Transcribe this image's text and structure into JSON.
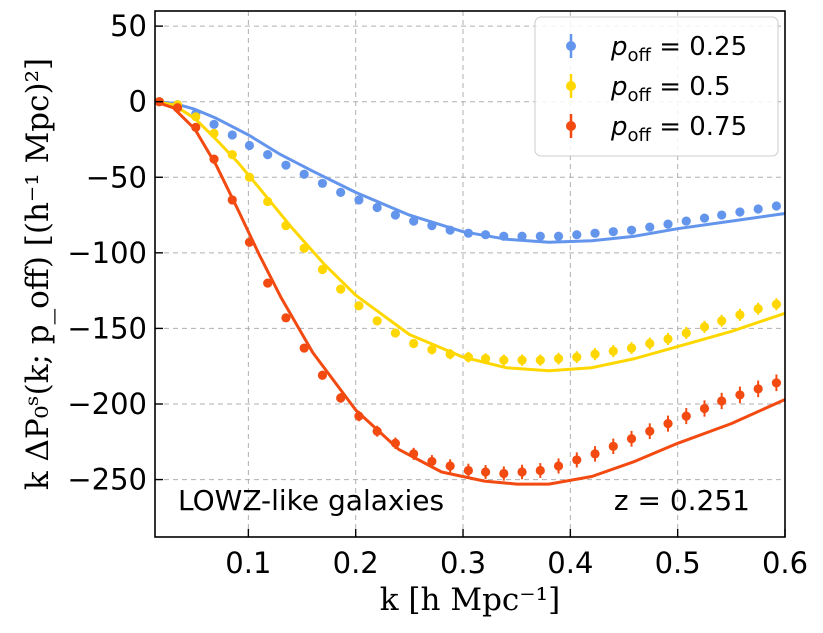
{
  "chart_data": {
    "type": "line",
    "title": "",
    "xlabel": "k [h Mpc⁻¹]",
    "ylabel": "k ΔP₀ˢ(k; p_off) [(h⁻¹ Mpc)²]",
    "xlim": [
      0.013,
      0.6
    ],
    "ylim": [
      -288,
      60
    ],
    "xticks": [
      0.1,
      0.2,
      0.3,
      0.4,
      0.5,
      0.6
    ],
    "xtick_labels": [
      "0.1",
      "0.2",
      "0.3",
      "0.4",
      "0.5",
      "0.6"
    ],
    "yticks": [
      50,
      0,
      -50,
      -100,
      -150,
      -200,
      -250
    ],
    "ytick_labels": [
      "50",
      "0",
      "−50",
      "−100",
      "−150",
      "−200",
      "−250"
    ],
    "grid": true,
    "legend_position": "top-right",
    "annotations": {
      "sample": "LOWZ-like galaxies",
      "redshift": "z = 0.251"
    },
    "series": [
      {
        "name": "p_off = 0.25",
        "legend_label": "p",
        "legend_sub": "off",
        "legend_value": " = 0.25",
        "color": "#6495ED",
        "points_x": [
          0.017,
          0.034,
          0.051,
          0.068,
          0.085,
          0.101,
          0.118,
          0.135,
          0.152,
          0.169,
          0.186,
          0.203,
          0.22,
          0.237,
          0.254,
          0.271,
          0.288,
          0.305,
          0.321,
          0.338,
          0.355,
          0.372,
          0.389,
          0.406,
          0.423,
          0.44,
          0.457,
          0.474,
          0.491,
          0.508,
          0.525,
          0.541,
          0.558,
          0.575,
          0.592
        ],
        "points_y": [
          0,
          -2,
          -8,
          -15,
          -22,
          -29,
          -35,
          -42,
          -48,
          -54,
          -60,
          -65,
          -70,
          -75,
          -79,
          -82,
          -85,
          -87,
          -88,
          -89,
          -89,
          -89,
          -89,
          -88,
          -87,
          -86,
          -85,
          -83,
          -81,
          -79,
          -77,
          -75,
          -73,
          -71,
          -69
        ],
        "errors": [
          0.5,
          0.5,
          0.6,
          0.7,
          0.8,
          0.9,
          1,
          1,
          1.1,
          1.2,
          1.2,
          1.3,
          1.4,
          1.5,
          1.5,
          1.6,
          1.7,
          1.8,
          1.8,
          1.9,
          2,
          2,
          2.1,
          2.2,
          2.2,
          2.3,
          2.4,
          2.4,
          2.5,
          2.6,
          2.6,
          2.7,
          2.8,
          2.8,
          2.9
        ],
        "model_x": [
          0.013,
          0.03,
          0.05,
          0.07,
          0.1,
          0.13,
          0.16,
          0.2,
          0.25,
          0.3,
          0.34,
          0.38,
          0.42,
          0.46,
          0.5,
          0.55,
          0.6
        ],
        "model_y": [
          0,
          -1,
          -5,
          -11,
          -22,
          -35,
          -46,
          -60,
          -75,
          -86,
          -91,
          -93,
          -92,
          -89,
          -84,
          -79,
          -74
        ]
      },
      {
        "name": "p_off = 0.5",
        "legend_label": "p",
        "legend_sub": "off",
        "legend_value": " = 0.5",
        "color": "#FFD700",
        "points_x": [
          0.017,
          0.034,
          0.051,
          0.068,
          0.085,
          0.101,
          0.118,
          0.135,
          0.152,
          0.169,
          0.186,
          0.203,
          0.22,
          0.237,
          0.254,
          0.271,
          0.288,
          0.305,
          0.321,
          0.338,
          0.355,
          0.372,
          0.389,
          0.406,
          0.423,
          0.44,
          0.457,
          0.474,
          0.491,
          0.508,
          0.525,
          0.541,
          0.558,
          0.575,
          0.592
        ],
        "points_y": [
          0,
          -2,
          -10,
          -21,
          -35,
          -50,
          -66,
          -82,
          -97,
          -111,
          -124,
          -135,
          -145,
          -153,
          -160,
          -164,
          -167,
          -169,
          -170,
          -171,
          -171,
          -171,
          -170,
          -169,
          -167,
          -165,
          -163,
          -160,
          -157,
          -153,
          -149,
          -145,
          -141,
          -137,
          -134
        ],
        "errors": [
          0.6,
          0.7,
          0.8,
          0.9,
          1,
          1.2,
          1.4,
          1.6,
          1.8,
          2,
          2.2,
          2.4,
          2.6,
          2.8,
          3,
          3.2,
          3.4,
          3.5,
          3.6,
          3.7,
          3.8,
          3.8,
          3.9,
          3.9,
          4,
          4,
          4,
          4,
          4,
          4,
          4,
          4,
          4,
          4,
          4
        ],
        "model_x": [
          0.013,
          0.03,
          0.05,
          0.07,
          0.09,
          0.11,
          0.14,
          0.17,
          0.2,
          0.25,
          0.3,
          0.34,
          0.38,
          0.42,
          0.46,
          0.5,
          0.55,
          0.6
        ],
        "model_y": [
          0,
          -2,
          -11,
          -25,
          -40,
          -57,
          -83,
          -107,
          -128,
          -154,
          -169,
          -176,
          -178,
          -176,
          -170,
          -162,
          -152,
          -140
        ]
      },
      {
        "name": "p_off = 0.75",
        "legend_label": "p",
        "legend_sub": "off",
        "legend_value": " = 0.75",
        "color": "#F24A11",
        "points_x": [
          0.017,
          0.034,
          0.051,
          0.068,
          0.085,
          0.101,
          0.118,
          0.135,
          0.152,
          0.169,
          0.186,
          0.203,
          0.22,
          0.237,
          0.254,
          0.271,
          0.288,
          0.305,
          0.321,
          0.338,
          0.355,
          0.372,
          0.389,
          0.406,
          0.423,
          0.44,
          0.457,
          0.474,
          0.491,
          0.508,
          0.525,
          0.541,
          0.558,
          0.575,
          0.592
        ],
        "points_y": [
          0,
          -4,
          -17,
          -38,
          -65,
          -93,
          -120,
          -143,
          -163,
          -181,
          -196,
          -208,
          -218,
          -226,
          -233,
          -238,
          -241,
          -244,
          -245,
          -246,
          -245,
          -244,
          -241,
          -237,
          -233,
          -228,
          -223,
          -218,
          -213,
          -208,
          -203,
          -198,
          -194,
          -190,
          -186
        ],
        "errors": [
          0.8,
          0.9,
          1.1,
          1.3,
          1.6,
          1.9,
          2.2,
          2.5,
          2.8,
          3,
          3.2,
          3.4,
          3.6,
          3.8,
          4,
          4.2,
          4.4,
          4.5,
          4.6,
          4.7,
          4.8,
          4.9,
          5,
          5,
          5.1,
          5.1,
          5.2,
          5.2,
          5.3,
          5.3,
          5.4,
          5.4,
          5.5,
          5.5,
          5.5
        ],
        "model_x": [
          0.013,
          0.03,
          0.05,
          0.07,
          0.09,
          0.11,
          0.13,
          0.16,
          0.2,
          0.24,
          0.28,
          0.32,
          0.35,
          0.38,
          0.42,
          0.46,
          0.5,
          0.55,
          0.6
        ],
        "model_y": [
          0,
          -4,
          -18,
          -42,
          -71,
          -101,
          -129,
          -166,
          -204,
          -230,
          -245,
          -251,
          -253,
          -253,
          -248,
          -238,
          -226,
          -213,
          -197
        ]
      }
    ]
  }
}
